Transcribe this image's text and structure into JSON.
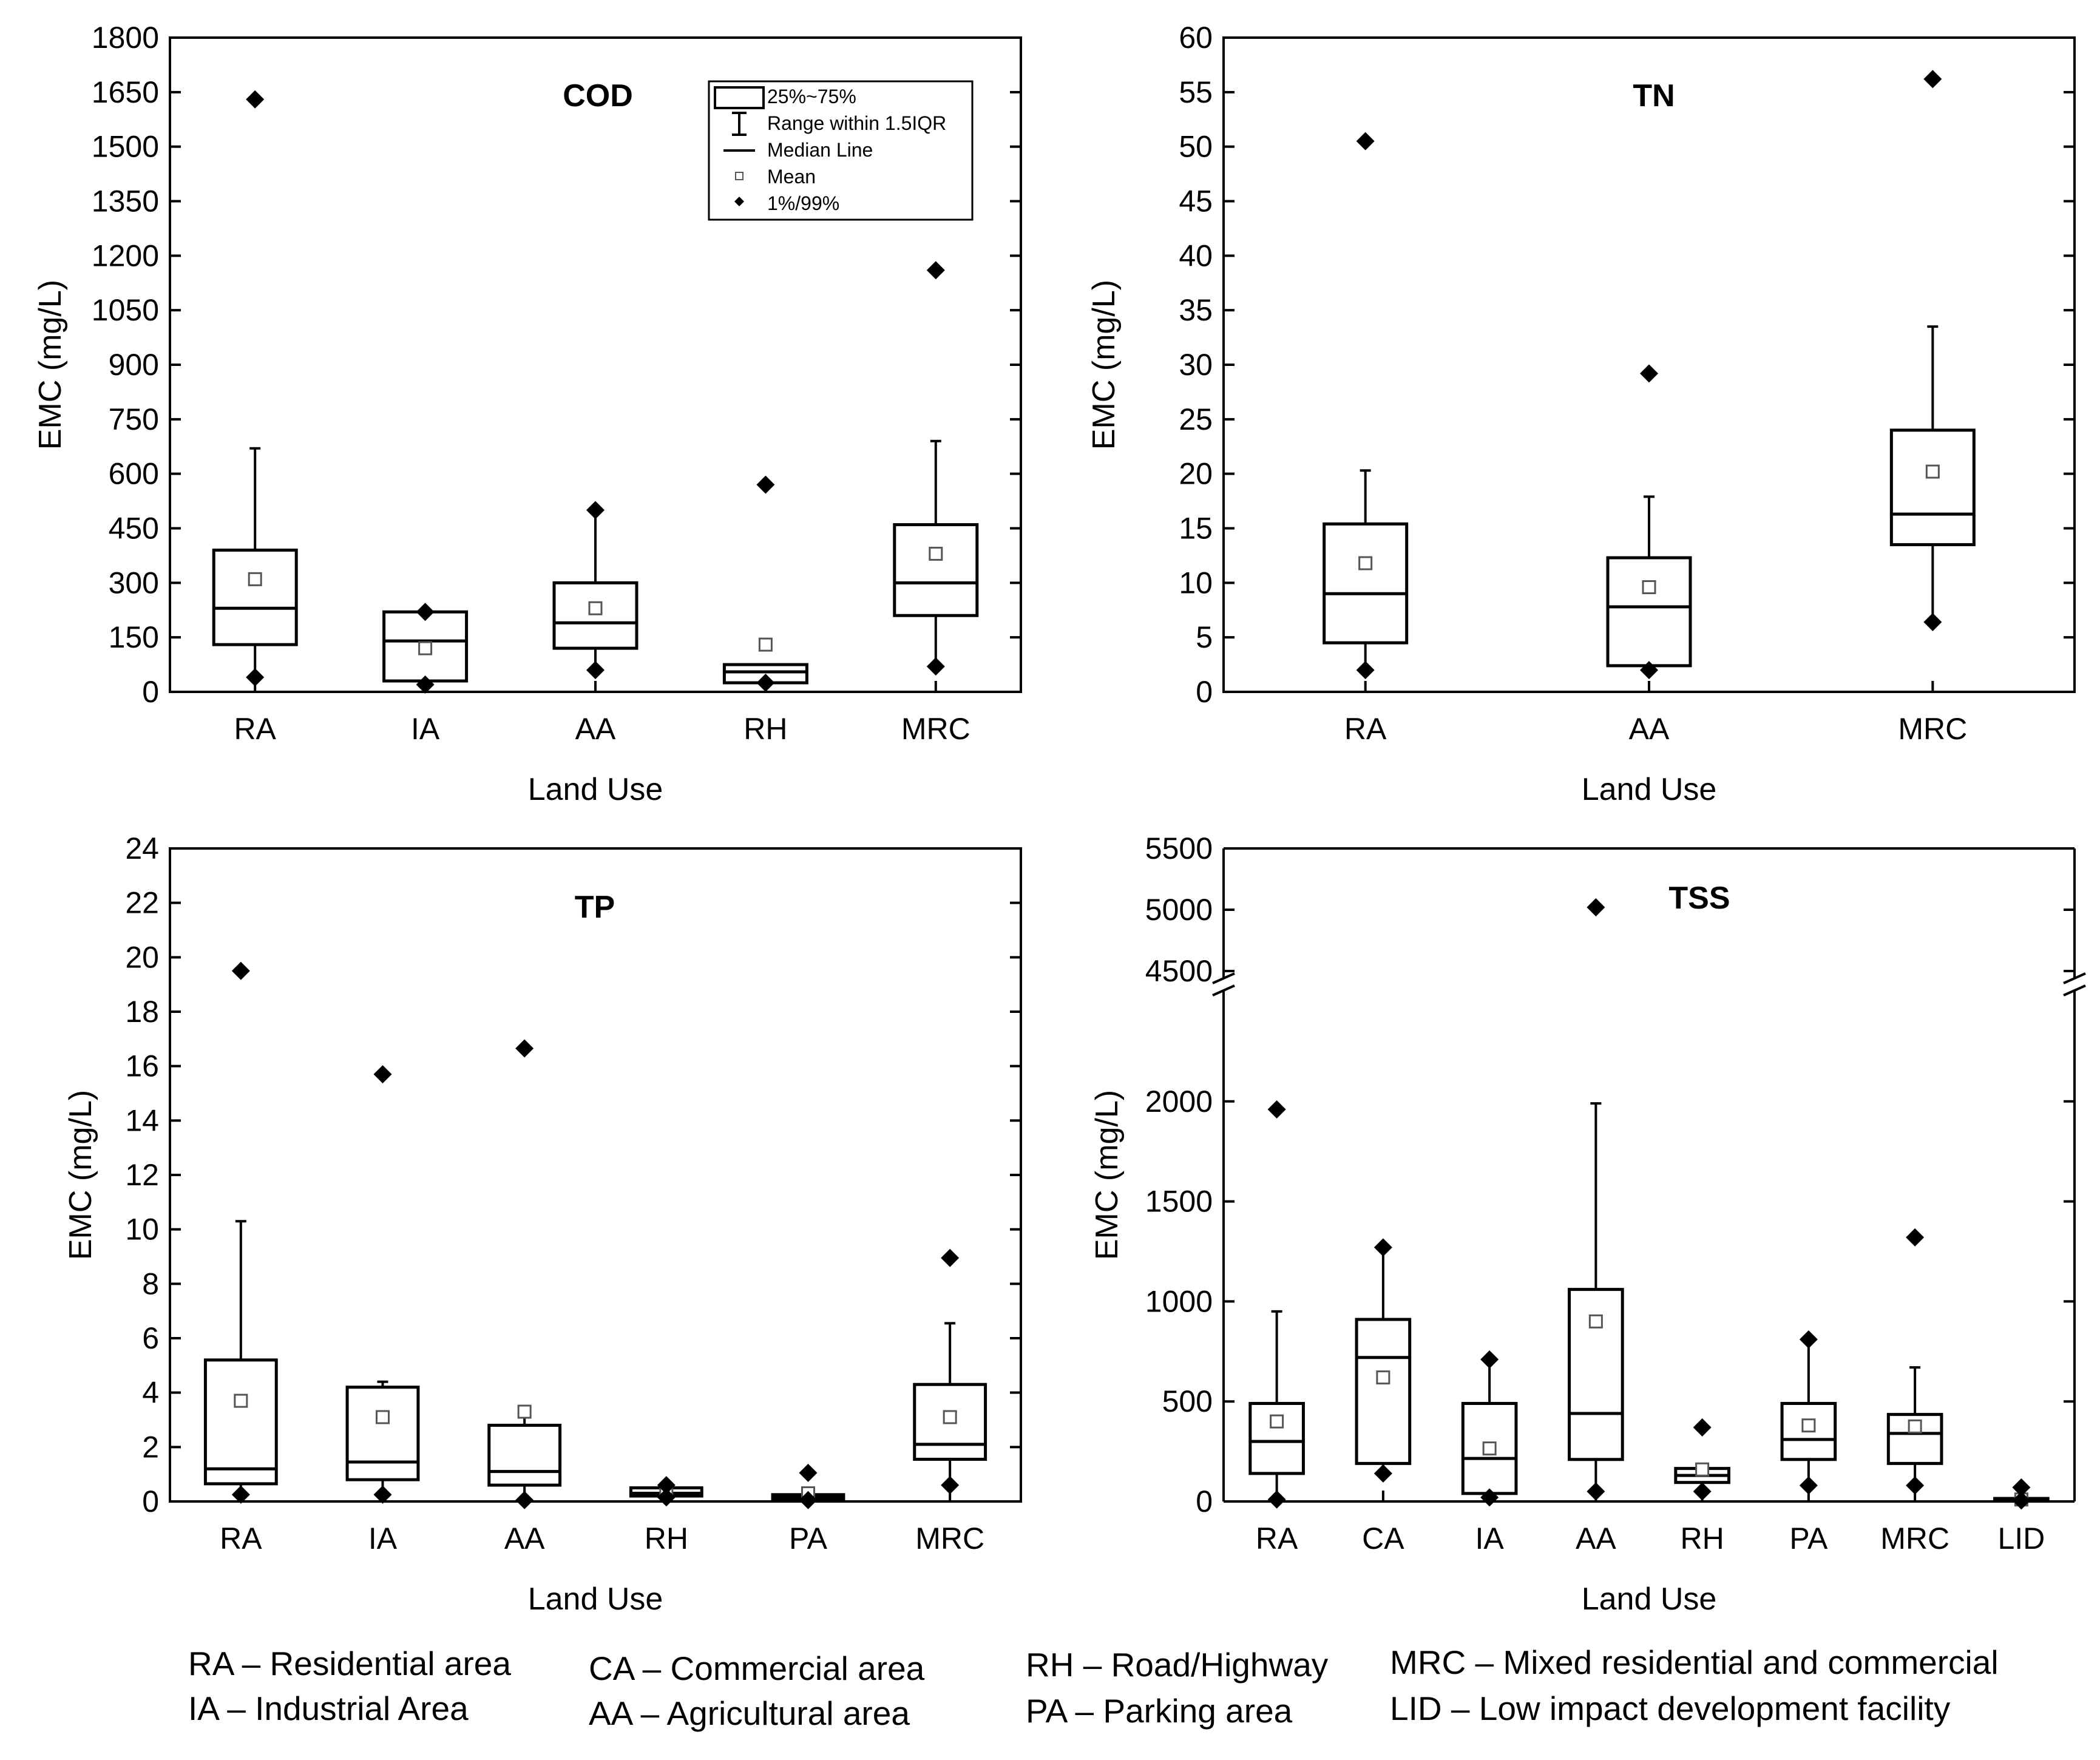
{
  "chart_data": [
    {
      "id": "cod",
      "type": "box",
      "title": "COD",
      "xlabel": "Land Use",
      "ylabel": "EMC (mg/L)",
      "ylim": [
        0,
        1800
      ],
      "yticks": [
        "0",
        "150",
        "300",
        "450",
        "600",
        "750",
        "900",
        "1050",
        "1200",
        "1350",
        "1500",
        "1650",
        "1800"
      ],
      "categories": [
        "RA",
        "IA",
        "AA",
        "RH",
        "MRC"
      ],
      "boxes": [
        {
          "category": "RA",
          "whisker_low": 40,
          "q1": 130,
          "median": 230,
          "q3": 390,
          "whisker_high": 670,
          "mean": 310,
          "p1": 40,
          "p99": 1630
        },
        {
          "category": "IA",
          "whisker_low": 20,
          "q1": 30,
          "median": 140,
          "q3": 220,
          "whisker_high": 220,
          "mean": 120,
          "p1": 20,
          "p99": 220
        },
        {
          "category": "AA",
          "whisker_low": 60,
          "q1": 120,
          "median": 190,
          "q3": 300,
          "whisker_high": 500,
          "mean": 230,
          "p1": 60,
          "p99": 500
        },
        {
          "category": "RH",
          "whisker_low": 25,
          "q1": 25,
          "median": 55,
          "q3": 75,
          "whisker_high": 75,
          "mean": 130,
          "p1": 25,
          "p99": 570
        },
        {
          "category": "MRC",
          "whisker_low": 70,
          "q1": 210,
          "median": 300,
          "q3": 460,
          "whisker_high": 690,
          "mean": 380,
          "p1": 70,
          "p99": 1160
        }
      ],
      "legend": {
        "entries": [
          "25%~75%",
          "Range within 1.5IQR",
          "Median Line",
          "Mean",
          "1%/99%"
        ],
        "placement": "top-right"
      }
    },
    {
      "id": "tn",
      "type": "box",
      "title": "TN",
      "xlabel": "Land Use",
      "ylabel": "EMC (mg/L)",
      "ylim": [
        0,
        60
      ],
      "yticks": [
        "0",
        "5",
        "10",
        "15",
        "20",
        "25",
        "30",
        "35",
        "40",
        "45",
        "50",
        "55",
        "60"
      ],
      "categories": [
        "RA",
        "AA",
        "MRC"
      ],
      "boxes": [
        {
          "category": "RA",
          "whisker_low": 2,
          "q1": 4.5,
          "median": 9,
          "q3": 15.4,
          "whisker_high": 20.3,
          "mean": 11.8,
          "p1": 2,
          "p99": 50.5
        },
        {
          "category": "AA",
          "whisker_low": 2,
          "q1": 2.4,
          "median": 7.8,
          "q3": 12.3,
          "whisker_high": 17.9,
          "mean": 9.6,
          "p1": 2,
          "p99": 29.2
        },
        {
          "category": "MRC",
          "whisker_low": 6.4,
          "q1": 13.5,
          "median": 16.3,
          "q3": 24,
          "whisker_high": 33.5,
          "mean": 20.2,
          "p1": 6.4,
          "p99": 56.2
        }
      ]
    },
    {
      "id": "tp",
      "type": "box",
      "title": "TP",
      "xlabel": "Land Use",
      "ylabel": "EMC (mg/L)",
      "ylim": [
        0,
        24
      ],
      "yticks": [
        "0",
        "2",
        "4",
        "6",
        "8",
        "10",
        "12",
        "14",
        "16",
        "18",
        "20",
        "22",
        "24"
      ],
      "categories": [
        "RA",
        "IA",
        "AA",
        "RH",
        "PA",
        "MRC"
      ],
      "boxes": [
        {
          "category": "RA",
          "whisker_low": 0.25,
          "q1": 0.65,
          "median": 1.2,
          "q3": 5.2,
          "whisker_high": 10.3,
          "mean": 3.7,
          "p1": 0.25,
          "p99": 19.5
        },
        {
          "category": "IA",
          "whisker_low": 0.25,
          "q1": 0.8,
          "median": 1.45,
          "q3": 4.2,
          "whisker_high": 4.4,
          "mean": 3.1,
          "p1": 0.25,
          "p99": 15.7
        },
        {
          "category": "AA",
          "whisker_low": 0.05,
          "q1": 0.6,
          "median": 1.1,
          "q3": 2.8,
          "whisker_high": 3.2,
          "mean": 3.3,
          "p1": 0.05,
          "p99": 16.65
        },
        {
          "category": "RH",
          "whisker_low": 0.15,
          "q1": 0.2,
          "median": 0.3,
          "q3": 0.5,
          "whisker_high": 0.6,
          "mean": 0.35,
          "p1": 0.15,
          "p99": 0.6
        },
        {
          "category": "PA",
          "whisker_low": 0.05,
          "q1": 0.1,
          "median": 0.15,
          "q3": 0.25,
          "whisker_high": 0.3,
          "mean": 0.3,
          "p1": 0.05,
          "p99": 1.05
        },
        {
          "category": "MRC",
          "whisker_low": 0.6,
          "q1": 1.55,
          "median": 2.1,
          "q3": 4.3,
          "whisker_high": 6.55,
          "mean": 3.1,
          "p1": 0.6,
          "p99": 8.95
        }
      ]
    },
    {
      "id": "tss",
      "type": "box",
      "title": "TSS",
      "xlabel": "Land Use",
      "ylabel": "EMC (mg/L)",
      "ylim_lower": [
        0,
        2500
      ],
      "ylim_upper": [
        4500,
        5500
      ],
      "axis_break": true,
      "yticks_lower": [
        "0",
        "500",
        "1000",
        "1500",
        "2000"
      ],
      "yticks_upper": [
        "4500",
        "5000",
        "5500"
      ],
      "categories": [
        "RA",
        "CA",
        "IA",
        "AA",
        "RH",
        "PA",
        "MRC",
        "LID"
      ],
      "boxes": [
        {
          "category": "RA",
          "whisker_low": 10,
          "q1": 140,
          "median": 300,
          "q3": 490,
          "whisker_high": 950,
          "mean": 400,
          "p1": 10,
          "p99": 1960
        },
        {
          "category": "CA",
          "whisker_low": 140,
          "q1": 190,
          "median": 720,
          "q3": 910,
          "whisker_high": 1270,
          "mean": 620,
          "p1": 140,
          "p99": 1270
        },
        {
          "category": "IA",
          "whisker_low": 20,
          "q1": 40,
          "median": 215,
          "q3": 490,
          "whisker_high": 710,
          "mean": 265,
          "p1": 20,
          "p99": 710
        },
        {
          "category": "AA",
          "whisker_low": 50,
          "q1": 210,
          "median": 440,
          "q3": 1060,
          "whisker_high": 1990,
          "mean": 900,
          "p1": 50,
          "p99": 5020
        },
        {
          "category": "RH",
          "whisker_low": 50,
          "q1": 95,
          "median": 130,
          "q3": 165,
          "whisker_high": 165,
          "mean": 160,
          "p1": 50,
          "p99": 370
        },
        {
          "category": "PA",
          "whisker_low": 80,
          "q1": 210,
          "median": 310,
          "q3": 490,
          "whisker_high": 810,
          "mean": 380,
          "p1": 80,
          "p99": 810
        },
        {
          "category": "MRC",
          "whisker_low": 80,
          "q1": 190,
          "median": 340,
          "q3": 435,
          "whisker_high": 670,
          "mean": 375,
          "p1": 80,
          "p99": 1320
        },
        {
          "category": "LID",
          "whisker_low": 5,
          "q1": 5,
          "median": 10,
          "q3": 15,
          "whisker_high": 15,
          "mean": 10,
          "p1": 5,
          "p99": 70
        }
      ]
    }
  ],
  "abbreviations": [
    "RA – Residential area",
    "IA – Industrial Area",
    "CA – Commercial area",
    "AA – Agricultural area",
    "RH – Road/Highway",
    "PA – Parking area",
    "MRC – Mixed residential and commercial",
    "LID – Low impact development facility"
  ]
}
